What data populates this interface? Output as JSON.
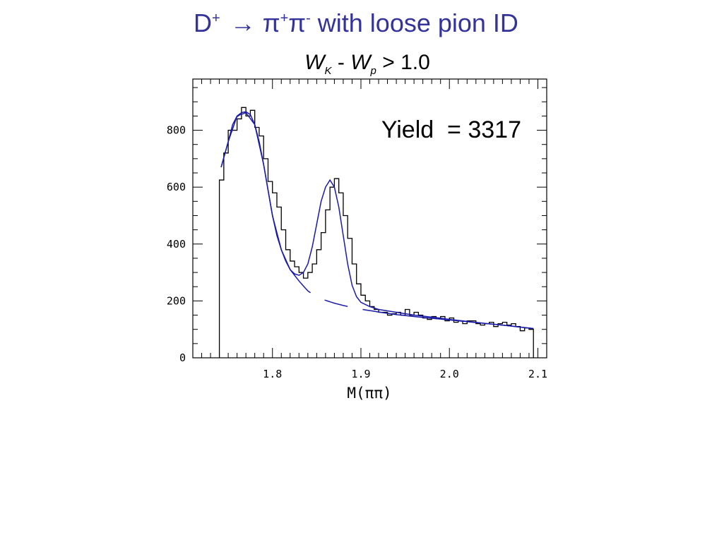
{
  "slide": {
    "title_prefix": "D",
    "title_sup1": "+",
    "title_arrow": "→",
    "title_pi1": "π",
    "title_sup2": "+",
    "title_pi2": "π",
    "title_sup3": "-",
    "title_suffix": " with loose pion ID",
    "title_color": "#333399"
  },
  "plot_heading": {
    "w1": "W",
    "sub1": "K",
    "minus": " - ",
    "w2": "W",
    "sub2": "p",
    "rest": " > 1.0"
  },
  "chart_data": {
    "type": "histogram",
    "xlabel": "M(ππ)",
    "ylabel": "",
    "xlim": [
      1.71,
      2.11
    ],
    "ylim": [
      0,
      980
    ],
    "xticks": [
      1.8,
      1.9,
      2.0,
      2.1
    ],
    "xtick_labels": [
      "1.8",
      "1.9",
      "2.0",
      "2.1"
    ],
    "yticks": [
      0,
      200,
      400,
      600,
      800
    ],
    "ytick_labels": [
      "0",
      "200",
      "400",
      "600",
      "800"
    ],
    "annotation": "Yield  = 3317",
    "bin_edges": [
      1.74,
      2.095
    ],
    "bin_width": 0.005,
    "counts": [
      625,
      720,
      800,
      800,
      840,
      880,
      850,
      870,
      810,
      780,
      700,
      620,
      580,
      530,
      450,
      380,
      340,
      320,
      300,
      280,
      300,
      330,
      380,
      440,
      520,
      600,
      630,
      580,
      500,
      420,
      330,
      260,
      220,
      200,
      180,
      170,
      160,
      160,
      150,
      155,
      160,
      150,
      170,
      150,
      160,
      150,
      140,
      135,
      145,
      140,
      145,
      130,
      140,
      125,
      130,
      120,
      130,
      130,
      120,
      115,
      120,
      125,
      110,
      120,
      125,
      115,
      120,
      110,
      95,
      105,
      100
    ],
    "fit": {
      "name": "fit",
      "x": [
        1.742,
        1.75,
        1.755,
        1.76,
        1.765,
        1.77,
        1.775,
        1.78,
        1.785,
        1.79,
        1.795,
        1.8,
        1.805,
        1.81,
        1.815,
        1.82,
        1.825,
        1.83,
        1.835,
        1.84,
        1.845,
        1.85,
        1.855,
        1.86,
        1.865,
        1.87,
        1.875,
        1.88,
        1.885,
        1.89,
        1.895,
        1.9,
        1.91,
        1.92,
        1.94,
        1.96,
        1.98,
        2.0,
        2.02,
        2.04,
        2.06,
        2.08,
        2.095
      ],
      "y": [
        670,
        760,
        820,
        850,
        862,
        865,
        855,
        820,
        760,
        680,
        590,
        500,
        430,
        380,
        340,
        310,
        295,
        290,
        300,
        330,
        390,
        470,
        550,
        600,
        625,
        600,
        530,
        430,
        330,
        255,
        215,
        195,
        180,
        170,
        160,
        150,
        143,
        135,
        128,
        121,
        115,
        108,
        103
      ]
    },
    "background": {
      "name": "background",
      "x": [
        1.742,
        1.75,
        1.76,
        1.77,
        1.78,
        1.79,
        1.8,
        1.81,
        1.82,
        1.83,
        1.84,
        1.85,
        1.86,
        1.87,
        1.88,
        1.89,
        1.9,
        1.91,
        1.92,
        1.94,
        1.96,
        1.98,
        2.0,
        2.02,
        2.04,
        2.06,
        2.08,
        2.095
      ],
      "y": [
        670,
        760,
        850,
        862,
        820,
        680,
        500,
        380,
        310,
        270,
        235,
        215,
        202,
        192,
        184,
        177,
        171,
        166,
        161,
        152,
        145,
        139,
        133,
        127,
        121,
        115,
        108,
        103
      ],
      "dash_segments": [
        [
          1.742,
          1.843
        ],
        [
          1.859,
          1.885
        ],
        [
          1.902,
          2.095
        ]
      ]
    },
    "colors": {
      "histogram": "#000000",
      "fit": "#1a1aa8",
      "background": "#1a1aa8"
    }
  }
}
